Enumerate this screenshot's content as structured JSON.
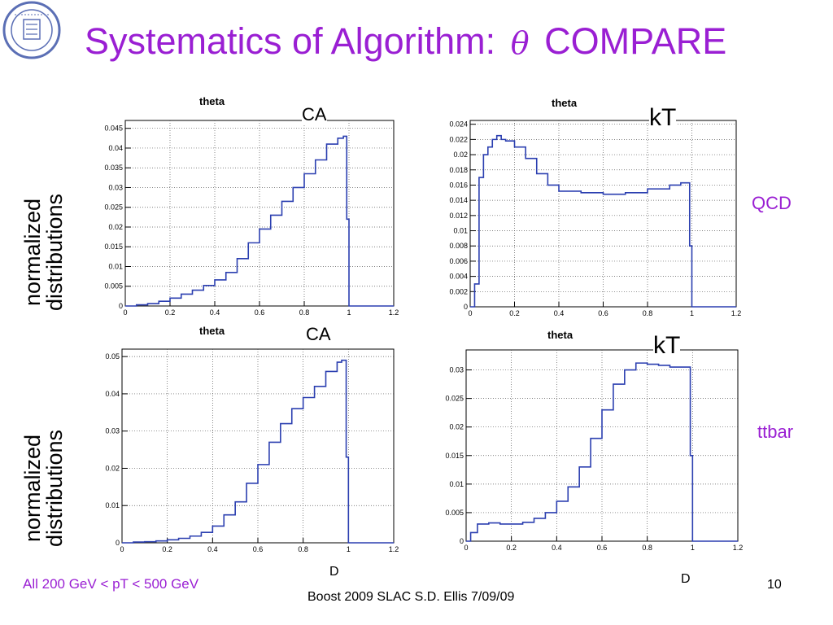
{
  "title": {
    "text": "Systematics of Algorithm:",
    "symbol": "θ",
    "suffix": "COMPARE",
    "color": "#9a1fd3"
  },
  "logo": {
    "name": "university-seal",
    "color": "#5b6fb5"
  },
  "row_labels": [
    {
      "line1": "normalized",
      "line2": "distributions"
    },
    {
      "line1": "normalized",
      "line2": "distributions"
    }
  ],
  "side_labels": {
    "top": "QCD",
    "bottom": "ttbar"
  },
  "algorithm_labels": [
    "CA",
    "kT",
    "CA",
    "kT"
  ],
  "d_labels": [
    "D",
    "D"
  ],
  "footer": {
    "range": "All 200 GeV < pT < 500 GeV",
    "credit": "Boost 2009  SLAC     S.D. Ellis    7/09/09",
    "slide_number": "10"
  },
  "chart_data": [
    {
      "type": "line",
      "title": "theta",
      "xlim": [
        0,
        1.2
      ],
      "ylim": [
        0,
        0.047
      ],
      "xticks": [
        "0",
        "0.2",
        "0.4",
        "0.6",
        "0.8",
        "1",
        "1.2"
      ],
      "yticks": [
        "0",
        "0.005",
        "0.01",
        "0.015",
        "0.02",
        "0.025",
        "0.03",
        "0.035",
        "0.04",
        "0.045"
      ],
      "ytick_values": [
        0,
        0.005,
        0.01,
        0.015,
        0.02,
        0.025,
        0.03,
        0.035,
        0.04,
        0.045
      ],
      "grid": true,
      "series": [
        {
          "color": "#2b3fb0",
          "x": [
            0,
            0.05,
            0.1,
            0.15,
            0.2,
            0.25,
            0.3,
            0.35,
            0.4,
            0.45,
            0.5,
            0.55,
            0.6,
            0.65,
            0.7,
            0.75,
            0.8,
            0.85,
            0.9,
            0.95,
            0.975,
            0.99,
            1.0
          ],
          "y": [
            0,
            0.0003,
            0.0006,
            0.0012,
            0.002,
            0.003,
            0.004,
            0.0052,
            0.0066,
            0.0085,
            0.012,
            0.016,
            0.0195,
            0.023,
            0.0265,
            0.03,
            0.0335,
            0.037,
            0.041,
            0.0425,
            0.043,
            0.022,
            0
          ]
        }
      ]
    },
    {
      "type": "line",
      "title": "theta",
      "xlim": [
        0,
        1.2
      ],
      "ylim": [
        0,
        0.0245
      ],
      "xticks": [
        "0",
        "0.2",
        "0.4",
        "0.6",
        "0.8",
        "1",
        "1.2"
      ],
      "yticks": [
        "0",
        "0.002",
        "0.004",
        "0.006",
        "0.008",
        "0.01",
        "0.012",
        "0.014",
        "0.016",
        "0.018",
        "0.02",
        "0.022",
        "0.024"
      ],
      "ytick_values": [
        0,
        0.002,
        0.004,
        0.006,
        0.008,
        0.01,
        0.012,
        0.014,
        0.016,
        0.018,
        0.02,
        0.022,
        0.024
      ],
      "grid": true,
      "series": [
        {
          "color": "#2b3fb0",
          "x": [
            0,
            0.02,
            0.04,
            0.06,
            0.08,
            0.1,
            0.12,
            0.14,
            0.16,
            0.2,
            0.25,
            0.3,
            0.35,
            0.4,
            0.5,
            0.6,
            0.7,
            0.8,
            0.9,
            0.95,
            0.99,
            1.0
          ],
          "y": [
            0,
            0.003,
            0.017,
            0.02,
            0.021,
            0.022,
            0.0225,
            0.022,
            0.0218,
            0.021,
            0.0195,
            0.0175,
            0.016,
            0.0152,
            0.015,
            0.0148,
            0.015,
            0.0155,
            0.016,
            0.0163,
            0.008,
            0
          ]
        }
      ]
    },
    {
      "type": "line",
      "title": "theta",
      "xlim": [
        0,
        1.2
      ],
      "ylim": [
        0,
        0.052
      ],
      "xticks": [
        "0",
        "0.2",
        "0.4",
        "0.6",
        "0.8",
        "1",
        "1.2"
      ],
      "yticks": [
        "0",
        "0.01",
        "0.02",
        "0.03",
        "0.04",
        "0.05"
      ],
      "ytick_values": [
        0,
        0.01,
        0.02,
        0.03,
        0.04,
        0.05
      ],
      "grid": true,
      "series": [
        {
          "color": "#2b3fb0",
          "x": [
            0,
            0.05,
            0.1,
            0.15,
            0.2,
            0.25,
            0.3,
            0.35,
            0.4,
            0.45,
            0.5,
            0.55,
            0.6,
            0.65,
            0.7,
            0.75,
            0.8,
            0.85,
            0.9,
            0.95,
            0.97,
            0.99,
            1.0
          ],
          "y": [
            0,
            0.0002,
            0.0003,
            0.0005,
            0.0008,
            0.0012,
            0.0018,
            0.0028,
            0.0045,
            0.0075,
            0.011,
            0.016,
            0.021,
            0.027,
            0.032,
            0.036,
            0.039,
            0.042,
            0.046,
            0.0485,
            0.049,
            0.023,
            0
          ]
        }
      ]
    },
    {
      "type": "line",
      "title": "theta",
      "xlim": [
        0,
        1.2
      ],
      "ylim": [
        0,
        0.0335
      ],
      "xticks": [
        "0",
        "0.2",
        "0.4",
        "0.6",
        "0.8",
        "1",
        "1.2"
      ],
      "yticks": [
        "0",
        "0.005",
        "0.01",
        "0.015",
        "0.02",
        "0.025",
        "0.03"
      ],
      "ytick_values": [
        0,
        0.005,
        0.01,
        0.015,
        0.02,
        0.025,
        0.03
      ],
      "grid": true,
      "series": [
        {
          "color": "#2b3fb0",
          "x": [
            0,
            0.02,
            0.05,
            0.1,
            0.15,
            0.2,
            0.25,
            0.3,
            0.35,
            0.4,
            0.45,
            0.5,
            0.55,
            0.6,
            0.65,
            0.7,
            0.75,
            0.8,
            0.85,
            0.9,
            0.95,
            0.99,
            1.0
          ],
          "y": [
            0,
            0.0015,
            0.003,
            0.0032,
            0.003,
            0.003,
            0.0033,
            0.004,
            0.005,
            0.007,
            0.0095,
            0.013,
            0.018,
            0.023,
            0.0275,
            0.03,
            0.0312,
            0.031,
            0.0308,
            0.0305,
            0.0305,
            0.015,
            0
          ]
        }
      ]
    }
  ]
}
